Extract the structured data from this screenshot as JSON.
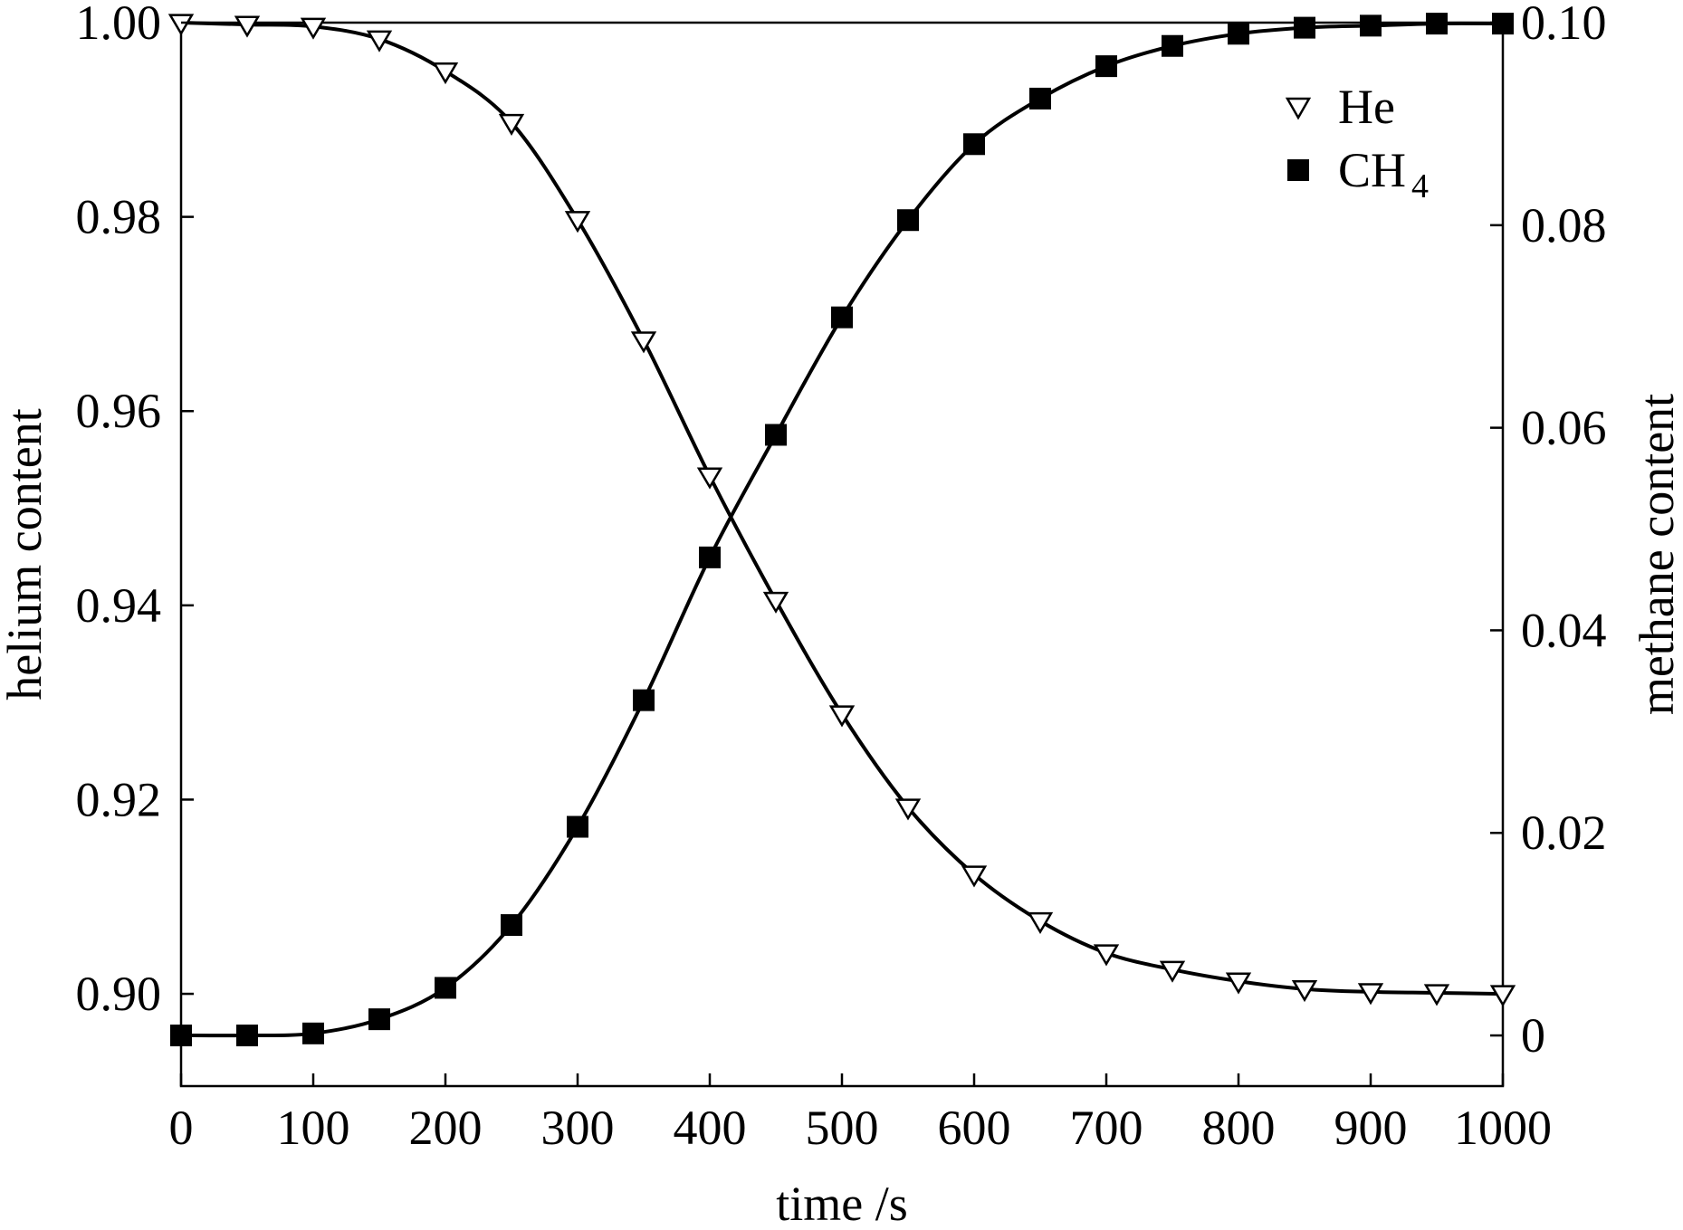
{
  "chart_data": {
    "type": "line",
    "title": "",
    "xlabel": "time /s",
    "ylabel_left": "helium content",
    "ylabel_right": "methane content",
    "xlim": [
      0,
      1000
    ],
    "ylim_left": [
      0.8905,
      1.0
    ],
    "ylim_right": [
      -0.005,
      0.1
    ],
    "x_ticks": [
      "0",
      "100",
      "200",
      "300",
      "400",
      "500",
      "600",
      "700",
      "800",
      "900",
      "1000"
    ],
    "y_left_ticks": [
      "0.90",
      "0.92",
      "0.94",
      "0.96",
      "0.98",
      "1.00"
    ],
    "y_right_ticks": [
      "0",
      "0.02",
      "0.04",
      "0.06",
      "0.08",
      "0.10"
    ],
    "grid": false,
    "legend_position": "top-right",
    "legend": [
      {
        "label": "He",
        "marker": "open-triangle-down"
      },
      {
        "label": "CH",
        "subscript": "4",
        "marker": "filled-square"
      }
    ],
    "series": [
      {
        "name": "He",
        "axis": "left",
        "marker": "open-triangle-down",
        "x": [
          0,
          50,
          100,
          150,
          200,
          250,
          300,
          350,
          400,
          450,
          500,
          550,
          600,
          650,
          700,
          750,
          800,
          850,
          900,
          950,
          1000
        ],
        "y": [
          1.0,
          0.9998,
          0.9996,
          0.9983,
          0.995,
          0.9897,
          0.9797,
          0.9673,
          0.9533,
          0.9405,
          0.9288,
          0.9192,
          0.9123,
          0.9075,
          0.9042,
          0.9025,
          0.9013,
          0.9005,
          0.9002,
          0.9001,
          0.9
        ]
      },
      {
        "name": "CH4",
        "axis": "right",
        "marker": "filled-square",
        "x": [
          0,
          50,
          100,
          150,
          200,
          250,
          300,
          350,
          400,
          450,
          500,
          550,
          600,
          650,
          700,
          750,
          800,
          850,
          900,
          950,
          1000
        ],
        "y": [
          0.0,
          0.0,
          0.0002,
          0.0016,
          0.0047,
          0.0109,
          0.0206,
          0.0331,
          0.0472,
          0.0593,
          0.0709,
          0.0805,
          0.088,
          0.0925,
          0.0957,
          0.0977,
          0.0989,
          0.0995,
          0.0997,
          0.0999,
          0.0999
        ]
      }
    ]
  }
}
